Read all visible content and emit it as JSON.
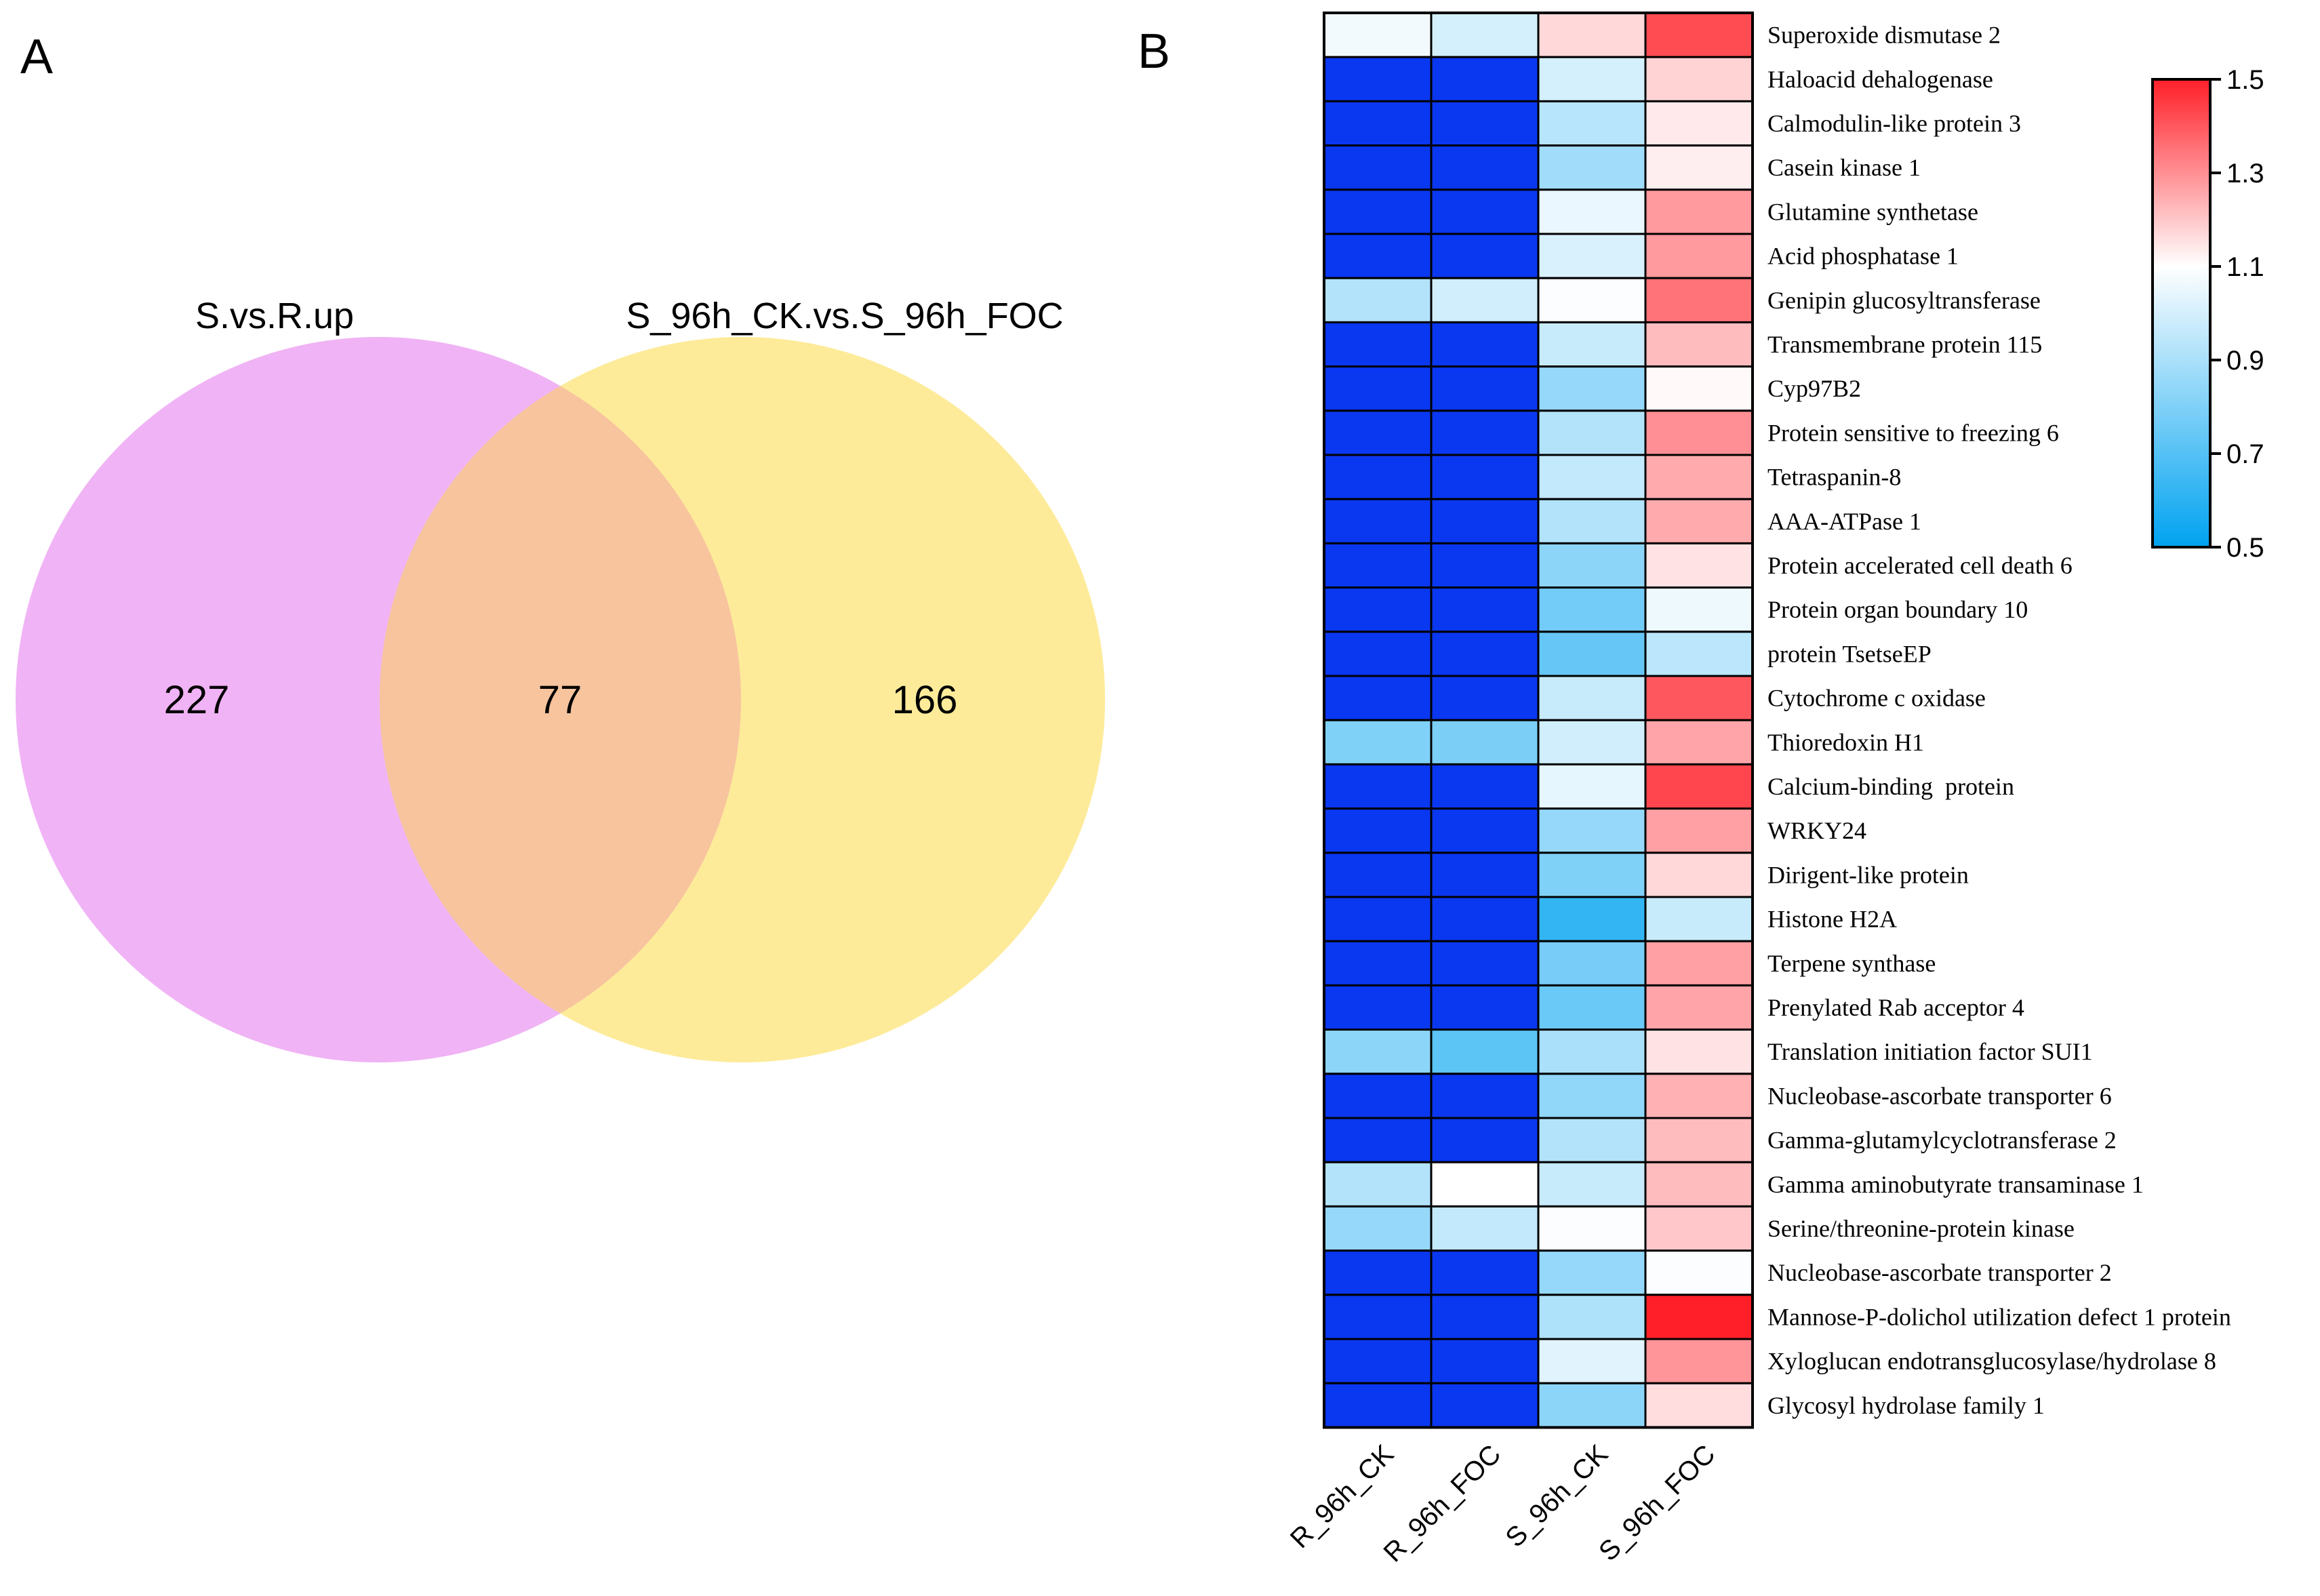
{
  "panels": {
    "a": "A",
    "b": "B"
  },
  "chart_data": [
    {
      "type": "venn",
      "sets": [
        {
          "name": "S.vs.R.up",
          "only": 227,
          "color": "#f0b3f5"
        },
        {
          "name": "S_96h_CK.vs.S_96h_FOC",
          "only": 166,
          "color": "#fdeb9a"
        }
      ],
      "intersection": 77,
      "intersection_color": "#f7c49e"
    },
    {
      "type": "heatmap",
      "columns": [
        "R_96h_CK",
        "R_96h_FOC",
        "S_96h_CK",
        "S_96h_FOC"
      ],
      "rows": [
        "Superoxide dismutase 2",
        "Haloacid dehalogenase",
        "Calmodulin-like protein 3",
        "Casein kinase 1",
        "Glutamine synthetase",
        "Acid phosphatase 1",
        "Genipin glucosyltransferase",
        "Transmembrane protein 115",
        "Cyp97B2",
        "Protein sensitive to freezing 6",
        "Tetraspanin-8",
        "AAA-ATPase 1",
        "Protein accelerated cell death 6",
        "Protein organ boundary 10",
        "protein TsetseEP",
        "Cytochrome c oxidase",
        "Thioredoxin H1",
        "Calcium-binding  protein",
        "WRKY24",
        "Dirigent-like protein",
        "Histone H2A",
        "Terpene synthase",
        "Prenylated Rab acceptor 4",
        "Translation initiation factor SUI1",
        "Nucleobase-ascorbate transporter 6",
        "Gamma-glutamylcyclotransferase 2",
        "Gamma aminobutyrate transaminase 1",
        "Serine/threonine-protein kinase",
        "Nucleobase-ascorbate transporter 2",
        "Mannose-P-dolichol utilization defect 1 protein",
        "Xyloglucan endotransglucosylase/hydrolase 8",
        "Glycosyl hydrolase family 1"
      ],
      "values": [
        [
          1.07,
          1.0,
          1.17,
          1.42
        ],
        [
          null,
          null,
          1.0,
          1.18
        ],
        [
          null,
          null,
          0.93,
          1.14
        ],
        [
          null,
          null,
          0.88,
          1.13
        ],
        [
          null,
          null,
          1.05,
          1.28
        ],
        [
          null,
          null,
          1.01,
          1.28
        ],
        [
          0.92,
          0.99,
          1.09,
          1.35
        ],
        [
          null,
          null,
          0.97,
          1.22
        ],
        [
          null,
          null,
          0.85,
          1.11
        ],
        [
          null,
          null,
          0.92,
          1.3
        ],
        [
          null,
          null,
          0.96,
          1.25
        ],
        [
          null,
          null,
          0.92,
          1.25
        ],
        [
          null,
          null,
          0.83,
          1.15
        ],
        [
          null,
          null,
          0.77,
          1.06
        ],
        [
          null,
          null,
          0.74,
          0.94
        ],
        [
          null,
          null,
          0.97,
          1.4
        ],
        [
          0.8,
          0.79,
          0.99,
          1.26
        ],
        [
          null,
          null,
          1.04,
          1.43
        ],
        [
          null,
          null,
          0.85,
          1.27
        ],
        [
          null,
          null,
          0.8,
          1.17
        ],
        [
          null,
          null,
          0.62,
          0.97
        ],
        [
          null,
          null,
          0.78,
          1.27
        ],
        [
          null,
          null,
          0.75,
          1.26
        ],
        [
          0.83,
          0.72,
          0.9,
          1.15
        ],
        [
          null,
          null,
          0.84,
          1.24
        ],
        [
          null,
          null,
          0.92,
          1.22
        ],
        [
          0.92,
          1.1,
          0.97,
          1.22
        ],
        [
          0.85,
          0.96,
          1.09,
          1.2
        ],
        [
          null,
          null,
          0.85,
          1.09
        ],
        [
          null,
          null,
          0.91,
          1.5
        ],
        [
          null,
          null,
          1.03,
          1.29
        ],
        [
          null,
          null,
          0.83,
          1.16
        ]
      ],
      "null_color": "#0a37f0",
      "color_scale": {
        "min": 0.5,
        "mid": 1.1,
        "max": 1.5,
        "colors": [
          "#00a2f0",
          "#ffffff",
          "#ff1f28"
        ],
        "ticks": [
          "1.5",
          "1.3",
          "1.1",
          "0.9",
          "0.7",
          "0.5"
        ]
      }
    }
  ]
}
